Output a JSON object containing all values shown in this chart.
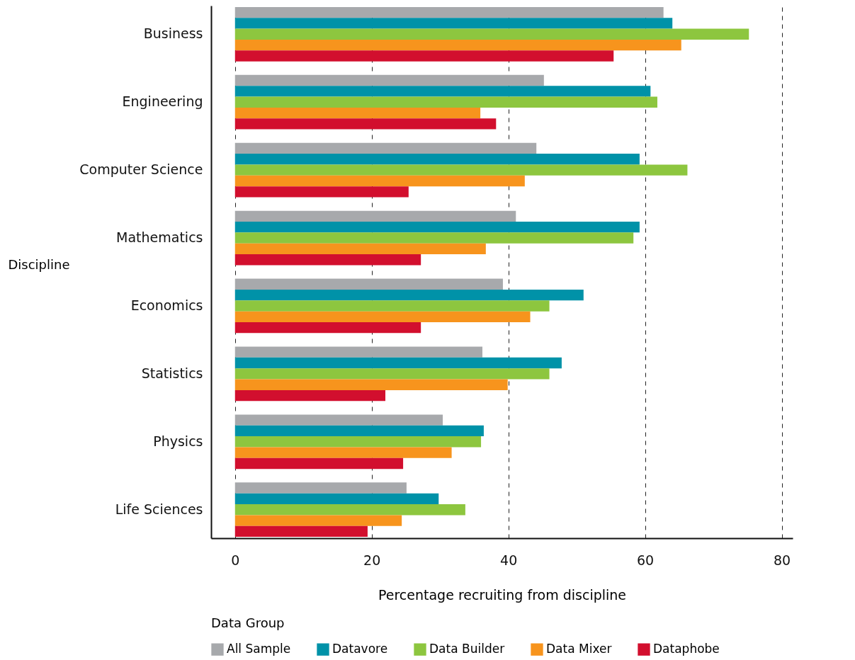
{
  "chart_data": {
    "type": "bar",
    "orientation": "horizontal",
    "xlabel": "Percentage recruiting from discipline",
    "ylabel": "Discipline",
    "legend_title": "Data Group",
    "legend": "bottom",
    "grid": "x",
    "line_style": "dashed",
    "categories": [
      "Business",
      "Engineering",
      "Computer Science",
      "Mathematics",
      "Economics",
      "Statistics",
      "Physics",
      "Life Sciences"
    ],
    "xlim": [
      -3.5,
      81.6
    ],
    "xticks": [
      0,
      20,
      40,
      60,
      80
    ],
    "series": [
      {
        "name": "All Sample",
        "color": "#a7a9ac",
        "values": [
          62.7,
          45.2,
          44.1,
          41.1,
          39.2,
          36.2,
          30.4,
          25.1
        ]
      },
      {
        "name": "Datavore",
        "color": "#0092a8",
        "values": [
          64.0,
          60.8,
          59.2,
          59.2,
          51.0,
          47.8,
          36.4,
          29.8
        ]
      },
      {
        "name": "Data Builder",
        "color": "#8dc63f",
        "values": [
          75.2,
          61.8,
          66.2,
          58.3,
          46.0,
          46.0,
          36.0,
          33.7
        ]
      },
      {
        "name": "Data Mixer",
        "color": "#f7941d",
        "values": [
          65.3,
          35.9,
          42.4,
          36.7,
          43.2,
          39.9,
          31.7,
          24.4
        ]
      },
      {
        "name": "Dataphobe",
        "color": "#d20f2e",
        "values": [
          55.4,
          38.2,
          25.4,
          27.2,
          27.2,
          22.0,
          24.6,
          19.4
        ]
      }
    ]
  }
}
